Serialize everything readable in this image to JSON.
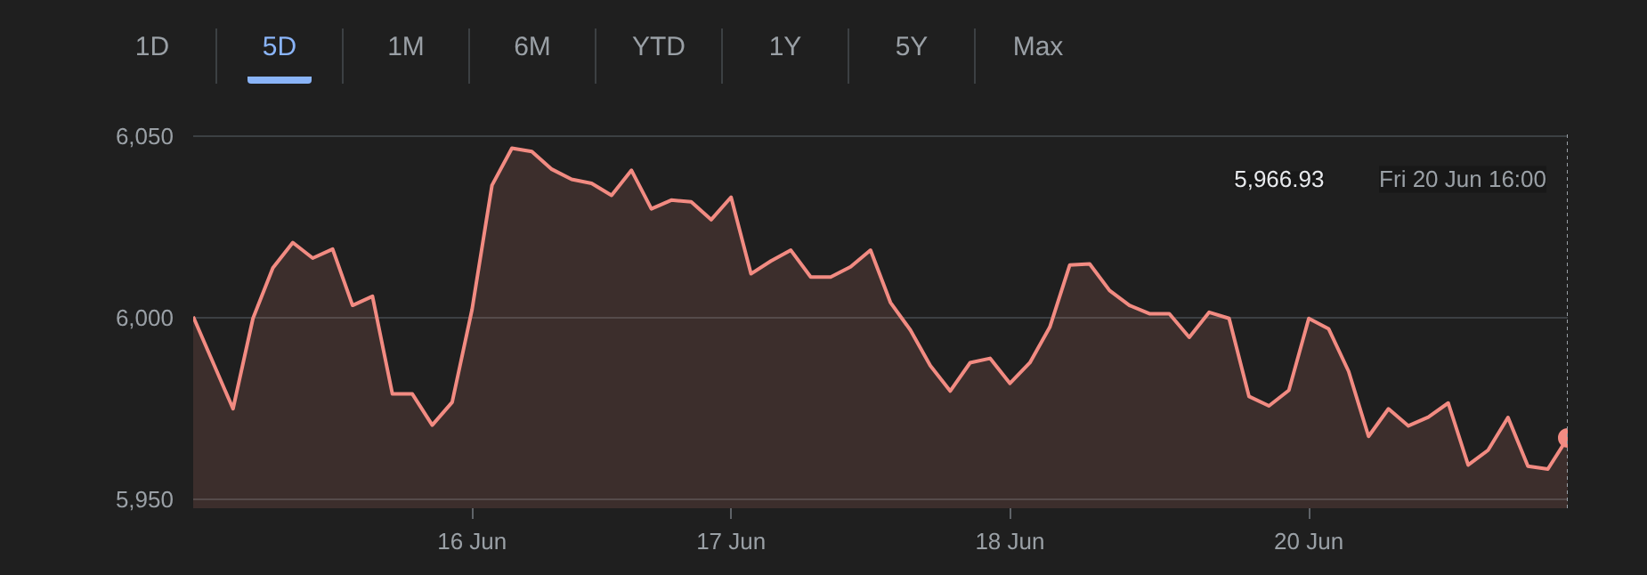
{
  "chart_data": {
    "type": "area",
    "categories": [
      null,
      null,
      null,
      null,
      null,
      null,
      null,
      null,
      null,
      null,
      null,
      null,
      null,
      null,
      "16 Jun",
      null,
      null,
      null,
      null,
      null,
      null,
      null,
      null,
      null,
      null,
      null,
      null,
      "17 Jun",
      null,
      null,
      null,
      null,
      null,
      null,
      null,
      null,
      null,
      null,
      null,
      null,
      null,
      "18 Jun",
      null,
      null,
      null,
      null,
      null,
      null,
      null,
      null,
      null,
      null,
      null,
      null,
      null,
      null,
      "20 Jun",
      null,
      null,
      null,
      null,
      null,
      null,
      null,
      null,
      null,
      null,
      null,
      null,
      null
    ],
    "series": [
      {
        "color": "#f28b82",
        "values": [
          6000.3,
          5987.6,
          5974.9,
          5999.8,
          6013.7,
          6020.7,
          6016.4,
          6018.9,
          6003.4,
          6005.9,
          5979.0,
          5979.0,
          5970.4,
          5976.7,
          6002.3,
          6036.5,
          6046.7,
          6045.8,
          6040.9,
          6038.1,
          6037.0,
          6033.7,
          6040.6,
          6030.0,
          6032.4,
          6031.9,
          6027.0,
          6033.2,
          6012.1,
          6015.6,
          6018.6,
          6011.2,
          6011.2,
          6014.0,
          6018.6,
          6004.2,
          5996.6,
          5986.8,
          5979.8,
          5987.6,
          5988.8,
          5981.9,
          5987.6,
          5997.4,
          6014.5,
          6014.8,
          6007.5,
          6003.4,
          6001.1,
          6001.1,
          5994.6,
          6001.5,
          5999.8,
          5978.3,
          5975.7,
          5980.0,
          5999.8,
          5996.9,
          5985.2,
          5967.3,
          5974.9,
          5970.2,
          5972.6,
          5976.5,
          5959.4,
          5963.5,
          5972.5,
          5959.1,
          5958.3,
          5966.9
        ]
      }
    ],
    "ylim": [
      5947.5,
      6050.5
    ],
    "yticks": [
      {
        "value": 5950,
        "label": "5,950"
      },
      {
        "value": 6000,
        "label": "6,000"
      },
      {
        "value": 6050,
        "label": "6,050"
      }
    ],
    "grid": "y",
    "annotations": [
      "1D",
      "5D",
      "1M",
      "6M",
      "YTD",
      "1Y",
      "5Y",
      "Max",
      "5,966.93",
      "Fri 20 Jun 16:00"
    ]
  }
}
